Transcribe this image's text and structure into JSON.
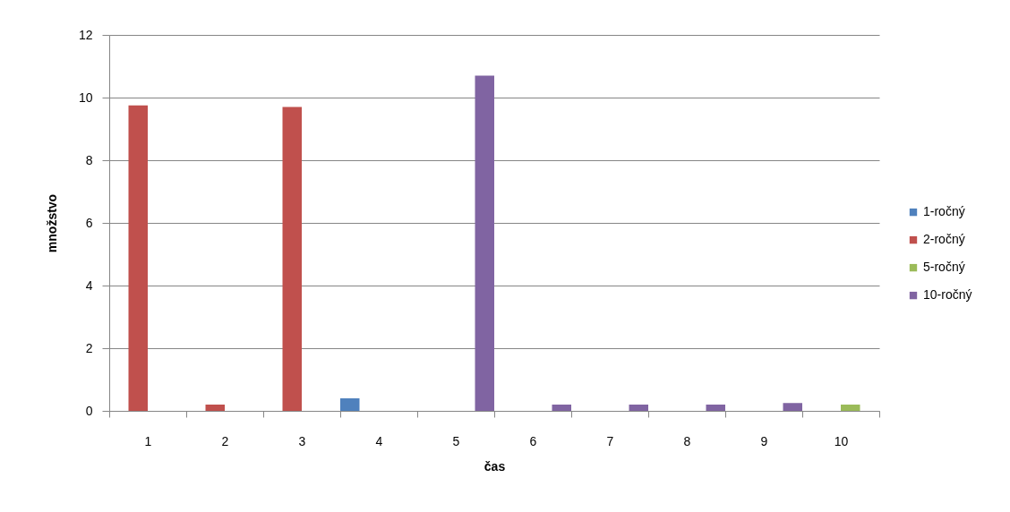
{
  "chart_data": {
    "type": "bar",
    "xlabel": "čas",
    "ylabel": "množstvo",
    "categories": [
      "1",
      "2",
      "3",
      "4",
      "5",
      "6",
      "7",
      "8",
      "9",
      "10"
    ],
    "series": [
      {
        "name": "1-ročný",
        "color": "#4f81bd",
        "values": [
          null,
          null,
          null,
          0.4,
          null,
          null,
          null,
          null,
          null,
          null
        ]
      },
      {
        "name": "2-ročný",
        "color": "#c0504d",
        "values": [
          9.75,
          0.2,
          9.7,
          null,
          null,
          null,
          null,
          null,
          null,
          null
        ]
      },
      {
        "name": "5-ročný",
        "color": "#9bbb59",
        "values": [
          null,
          null,
          null,
          null,
          null,
          null,
          null,
          null,
          null,
          0.2
        ]
      },
      {
        "name": "10-ročný",
        "color": "#8064a2",
        "values": [
          null,
          null,
          null,
          null,
          10.7,
          0.2,
          0.2,
          0.2,
          0.25,
          null
        ]
      }
    ],
    "ylim": [
      0,
      12
    ],
    "yticks": [
      0,
      2,
      4,
      6,
      8,
      10,
      12
    ],
    "grid": "y",
    "legend": "right"
  }
}
